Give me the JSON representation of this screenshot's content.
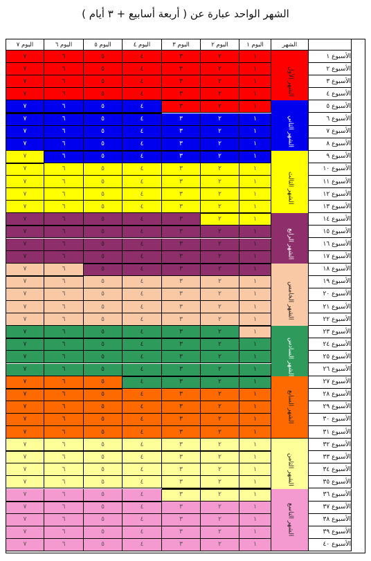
{
  "title": "الشهر الواحد عبارة عن ( أربعة أسابيع + ٣ أيام )",
  "headers": {
    "month": "الشهر",
    "days": [
      "اليوم ١",
      "اليوم ٢",
      "اليوم ٣",
      "اليوم ٤",
      "اليوم ٥",
      "اليوم ٦",
      "اليوم ٧"
    ]
  },
  "digits": [
    "١",
    "٢",
    "٣",
    "٤",
    "٥",
    "٦",
    "٧"
  ],
  "weeks": [
    "الأسبوع ١",
    "الأسبوع ٢",
    "الأسبوع ٣",
    "الأسبوع ٤",
    "الأسبوع ٥",
    "الأسبوع ٦",
    "الأسبوع ٧",
    "الأسبوع ٨",
    "الأسبوع ٩",
    "الأسبوع ١٠",
    "الأسبوع ١١",
    "الأسبوع ١٢",
    "الأسبوع ١٣",
    "الأسبوع ١٤",
    "الأسبوع ١٥",
    "الأسبوع ١٦",
    "الأسبوع ١٧",
    "الأسبوع ١٨",
    "الأسبوع ١٩",
    "الأسبوع ٢٠",
    "الأسبوع ٢١",
    "الأسبوع ٢٢",
    "الأسبوع ٢٣",
    "الأسبوع ٢٤",
    "الأسبوع ٢٥",
    "الأسبوع ٢٦",
    "الأسبوع ٢٧",
    "الأسبوع ٢٨",
    "الأسبوع ٢٩",
    "الأسبوع ٣٠",
    "الأسبوع ٣١",
    "الأسبوع ٣٢",
    "الأسبوع ٣٣",
    "الأسبوع ٣٤",
    "الأسبوع ٣٥",
    "الأسبوع ٣٦",
    "الأسبوع ٣٧",
    "الأسبوع ٣٨",
    "الأسبوع ٣٩",
    "الأسبوع ٤٠"
  ],
  "months": [
    {
      "label": "الشهر الأول",
      "color": "#ff0000"
    },
    {
      "label": "الشهر الثاني",
      "color": "#0000ee"
    },
    {
      "label": "الشهر الثالث",
      "color": "#ffff00"
    },
    {
      "label": "الشهر الرابع",
      "color": "#8e2e6b"
    },
    {
      "label": "الشهر الخامس",
      "color": "#f9c8a4"
    },
    {
      "label": "الشهر السادس",
      "color": "#2e9a5c"
    },
    {
      "label": "الشهر السابع",
      "color": "#ff6a00"
    },
    {
      "label": "الشهر الثامن",
      "color": "#ffff9a"
    },
    {
      "label": "الشهر التاسع",
      "color": "#f49ad0"
    }
  ]
}
